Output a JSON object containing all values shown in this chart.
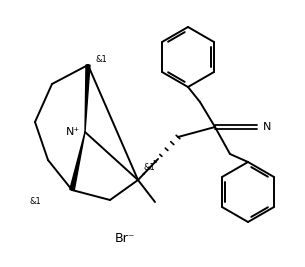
{
  "background": "#ffffff",
  "line_color": "#000000",
  "lw": 1.4,
  "br_label": "Br⁻",
  "n_plus": "N⁺",
  "cn_n": "N"
}
